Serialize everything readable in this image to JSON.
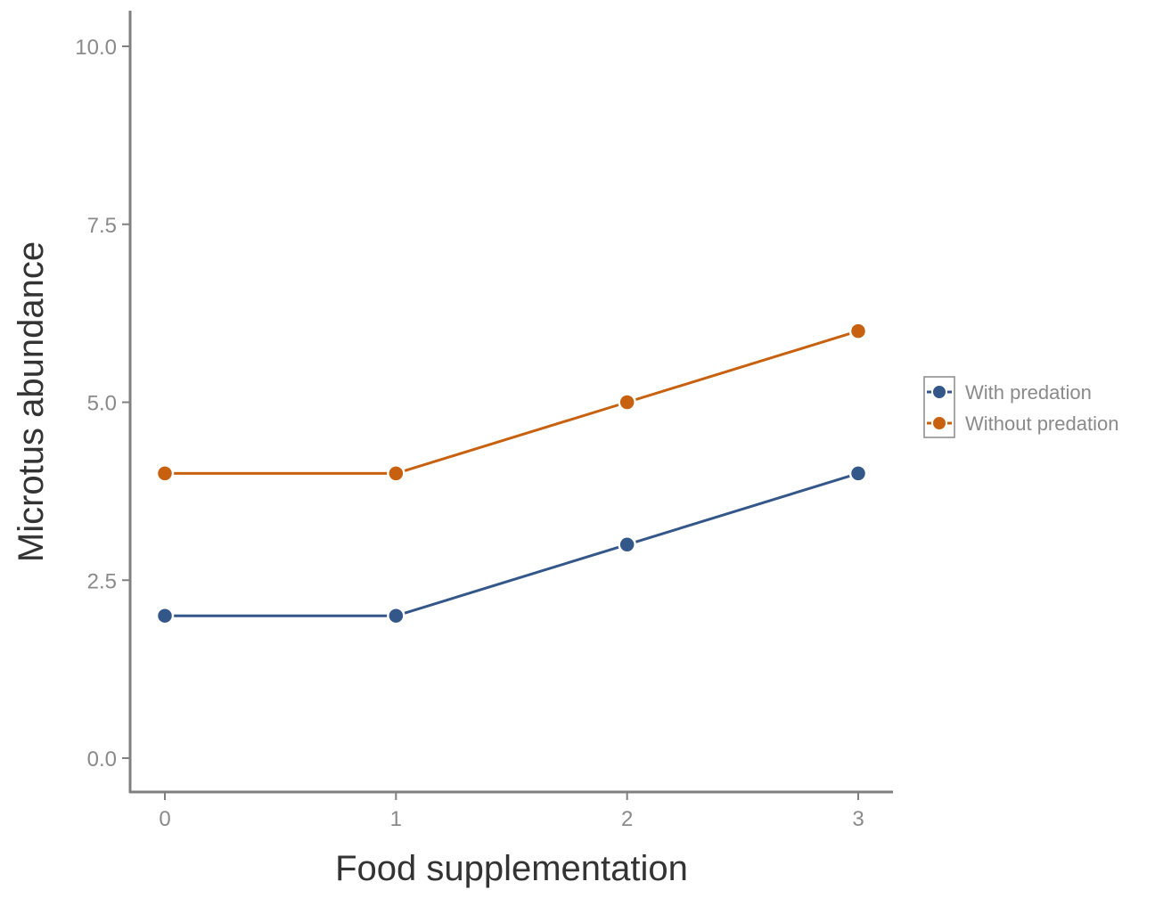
{
  "chart_data": {
    "type": "line",
    "title": "",
    "xlabel": "Food supplementation",
    "ylabel": "Microtus abundance",
    "x": [
      0,
      1,
      2,
      3
    ],
    "x_tick_labels": [
      "0",
      "1",
      "2",
      "3"
    ],
    "y_ticks": [
      0.0,
      2.5,
      5.0,
      7.5,
      10.0
    ],
    "y_tick_labels": [
      "0.0",
      "2.5",
      "5.0",
      "7.5",
      "10.0"
    ],
    "ylim": [
      0,
      10
    ],
    "xlim": [
      0,
      3
    ],
    "grid": false,
    "legend_position": "right",
    "series": [
      {
        "name": "With predation",
        "color": "#34578a",
        "values": [
          2,
          2,
          3,
          4
        ]
      },
      {
        "name": "Without predation",
        "color": "#c8610f",
        "values": [
          4,
          4,
          5,
          6
        ]
      }
    ]
  }
}
